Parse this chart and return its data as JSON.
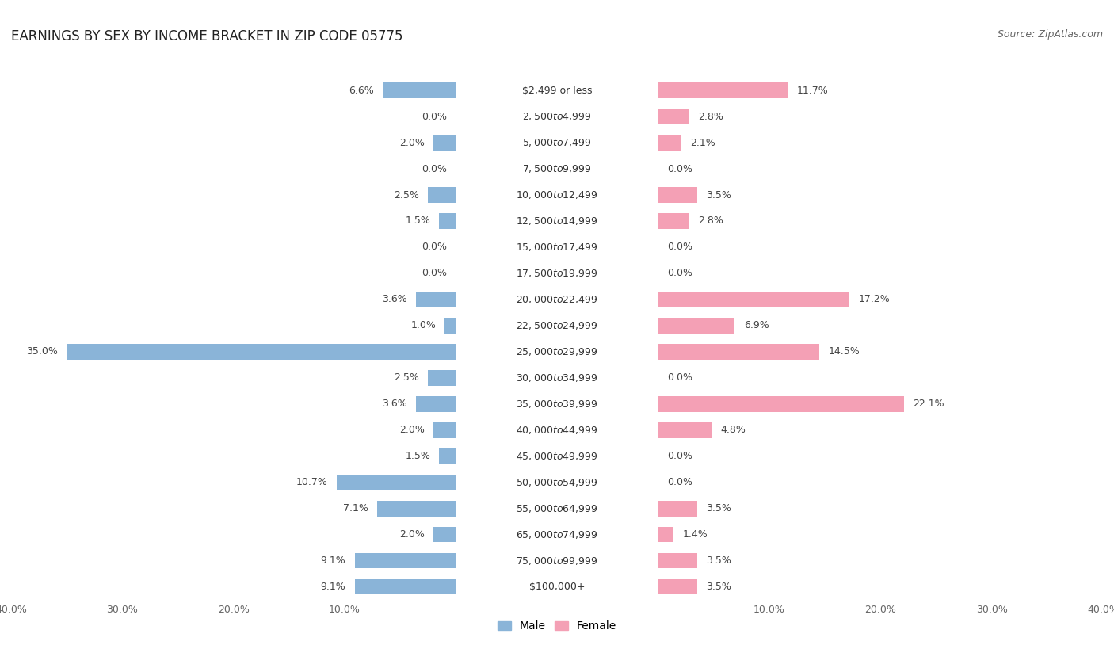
{
  "title": "EARNINGS BY SEX BY INCOME BRACKET IN ZIP CODE 05775",
  "source": "Source: ZipAtlas.com",
  "categories": [
    "$2,499 or less",
    "$2,500 to $4,999",
    "$5,000 to $7,499",
    "$7,500 to $9,999",
    "$10,000 to $12,499",
    "$12,500 to $14,999",
    "$15,000 to $17,499",
    "$17,500 to $19,999",
    "$20,000 to $22,499",
    "$22,500 to $24,999",
    "$25,000 to $29,999",
    "$30,000 to $34,999",
    "$35,000 to $39,999",
    "$40,000 to $44,999",
    "$45,000 to $49,999",
    "$50,000 to $54,999",
    "$55,000 to $64,999",
    "$65,000 to $74,999",
    "$75,000 to $99,999",
    "$100,000+"
  ],
  "male_values": [
    6.6,
    0.0,
    2.0,
    0.0,
    2.5,
    1.5,
    0.0,
    0.0,
    3.6,
    1.0,
    35.0,
    2.5,
    3.6,
    2.0,
    1.5,
    10.7,
    7.1,
    2.0,
    9.1,
    9.1
  ],
  "female_values": [
    11.7,
    2.8,
    2.1,
    0.0,
    3.5,
    2.8,
    0.0,
    0.0,
    17.2,
    6.9,
    14.5,
    0.0,
    22.1,
    4.8,
    0.0,
    0.0,
    3.5,
    1.4,
    3.5,
    3.5
  ],
  "male_color": "#8ab4d8",
  "female_color": "#f4a0b5",
  "xlim": 40.0,
  "row_colors": [
    "#ebebeb",
    "#f5f5f5"
  ],
  "bar_bg_color": "#ffffff",
  "title_fontsize": 12,
  "source_fontsize": 9,
  "label_fontsize": 9,
  "category_fontsize": 9
}
